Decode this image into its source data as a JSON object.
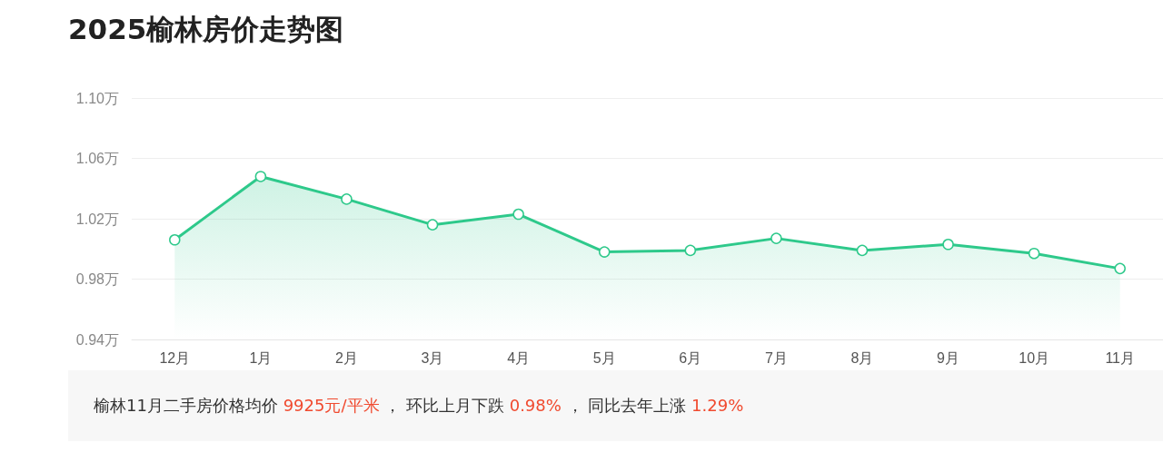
{
  "chart_data": {
    "type": "area",
    "title": "2025榆林房价走势图",
    "categories": [
      "12月",
      "1月",
      "2月",
      "3月",
      "4月",
      "5月",
      "6月",
      "7月",
      "8月",
      "9月",
      "10月",
      "11月"
    ],
    "series": [
      {
        "color": "#2ec98b",
        "values": [
          1.006,
          1.048,
          1.033,
          1.016,
          1.023,
          0.998,
          0.999,
          1.007,
          0.999,
          1.003,
          0.997,
          0.987
        ]
      }
    ],
    "ylim": [
      0.94,
      1.1
    ],
    "yticks": [
      {
        "value": 0.94,
        "label": "0.94万"
      },
      {
        "value": 0.98,
        "label": "0.98万"
      },
      {
        "value": 1.02,
        "label": "1.02万"
      },
      {
        "value": 1.06,
        "label": "1.06万"
      },
      {
        "value": 1.1,
        "label": "1.10万"
      }
    ],
    "grid": "y",
    "marker": "circle",
    "annotations": [
      "榆林11月二手房价格均价 ",
      "9925元/平米",
      " ， 环比上月下跌 ",
      "0.98%",
      " ， 同比去年上涨 ",
      "1.29%"
    ]
  }
}
